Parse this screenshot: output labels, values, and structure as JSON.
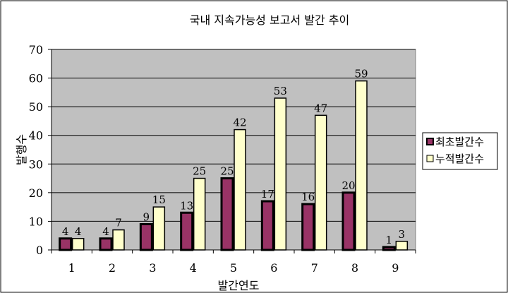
{
  "chart_data": {
    "type": "bar",
    "title": "국내 지속가능성 보고서 발간 추이",
    "xlabel": "발간연도",
    "ylabel": "발행수",
    "categories": [
      "1",
      "2",
      "3",
      "4",
      "5",
      "6",
      "7",
      "8",
      "9"
    ],
    "ylim": [
      0,
      70
    ],
    "yticks": [
      0,
      10,
      20,
      30,
      40,
      50,
      60,
      70
    ],
    "grid": true,
    "legend_position": "right",
    "series": [
      {
        "name": "최초발간수",
        "values": [
          4,
          4,
          9,
          13,
          25,
          17,
          16,
          20,
          1
        ],
        "color": "#993366"
      },
      {
        "name": "누적발간수",
        "values": [
          4,
          7,
          15,
          25,
          42,
          53,
          47,
          59,
          3
        ],
        "color": "#ffffcc"
      }
    ],
    "plot_background": "#c0c0c0"
  }
}
